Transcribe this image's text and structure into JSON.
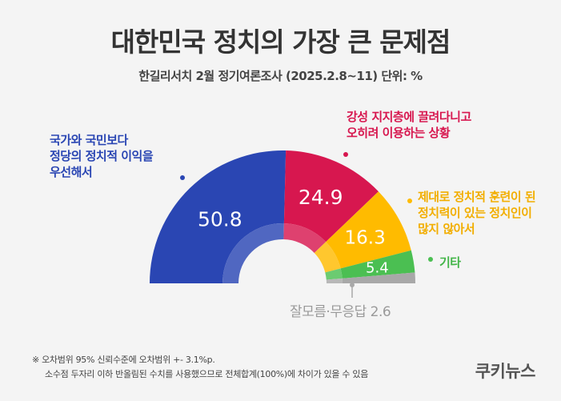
{
  "title": "대한민국 정치의 가장 큰 문제점",
  "subtitle": "한길리서치 2월 정기여론조사 (2025.2.8~11) 단위: %",
  "chart_data": {
    "type": "pie",
    "title": "대한민국 정치의 가장 큰 문제점",
    "unit": "%",
    "shape": "semicircle-donut",
    "slices": [
      {
        "label": "국가와 국민보다 정당의 정치적 이익을 우선해서",
        "value": 50.8,
        "value_label": "50.8",
        "color": "#2a46b3"
      },
      {
        "label": "강성 지지층에 끌려다니고 오히려 이용하는 상황",
        "value": 24.9,
        "value_label": "24.9",
        "color": "#d7174f"
      },
      {
        "label": "제대로 정치적 훈련이 된 정치력이 있는 정치인이 많지 않아서",
        "value": 16.3,
        "value_label": "16.3",
        "color": "#ffbb00"
      },
      {
        "label": "기타",
        "value": 5.4,
        "value_label": "5.4",
        "color": "#4bbf52"
      },
      {
        "label": "잘모름·무응답",
        "value": 2.6,
        "value_label": "",
        "color": "#a8a8a8"
      }
    ]
  },
  "annotations": {
    "blue": [
      "국가와 국민보다",
      "정당의 정치적 이익을",
      "우선해서"
    ],
    "red": [
      "강성 지지층에 끌려다니고",
      "오히려 이용하는 상황"
    ],
    "yellow": [
      "제대로 정치적 훈련이 된",
      "정치력이 있는 정치인이",
      "많지 않아서"
    ],
    "green": [
      "기타"
    ],
    "gray": "잘모름·무응답 2.6"
  },
  "notes": {
    "line1": "※ 오차범위 95% 신뢰수준에 오차범위 +- 3.1%p.",
    "line2": "소수점 두자리 이하 반올림된 수치를 사용했으므로 전체합계(100%)에 차이가 있을 수 있음"
  },
  "logo": "쿠키뉴스"
}
